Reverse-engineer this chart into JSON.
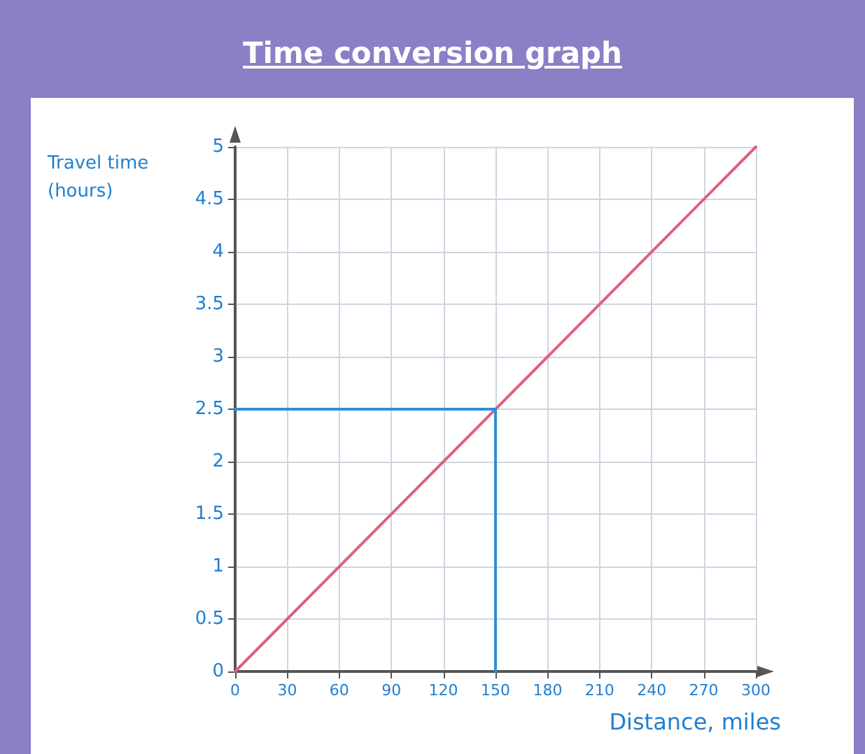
{
  "chart_data": {
    "type": "line",
    "title": "Time conversion graph",
    "xlabel": "Distance, miles",
    "ylabel": "Travel time\n(hours)",
    "series": [
      {
        "color": "#e0607a",
        "x": [
          0,
          300
        ],
        "values": [
          0,
          5
        ]
      },
      {
        "color": "#2b8fd8",
        "x": [
          0,
          150,
          150
        ],
        "values": [
          2.5,
          2.5,
          0
        ]
      }
    ],
    "xlim": [
      0,
      300
    ],
    "xticks": [
      0,
      30,
      60,
      90,
      120,
      150,
      180,
      210,
      240,
      270,
      300
    ],
    "ylim": [
      0,
      5
    ],
    "yticks": [
      0,
      0.5,
      1,
      1.5,
      2,
      2.5,
      3,
      3.5,
      4,
      4.5,
      5
    ],
    "grid": true,
    "marker": "none",
    "line_style": "solid"
  }
}
